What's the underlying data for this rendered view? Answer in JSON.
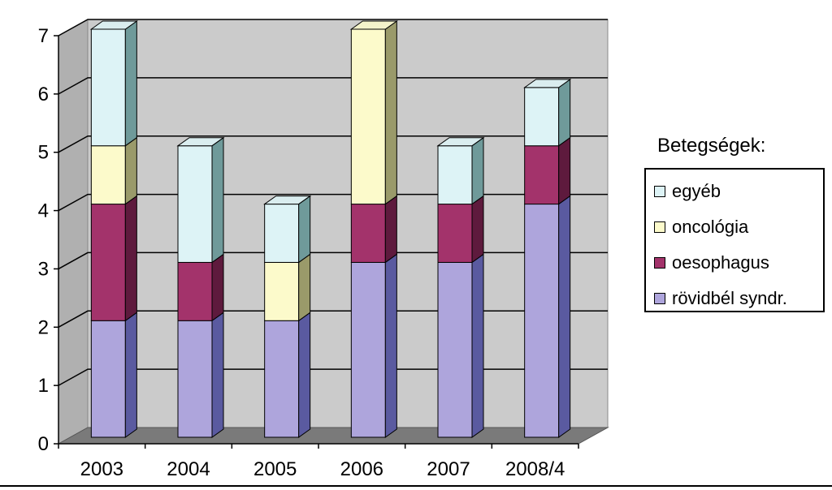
{
  "chart_data": {
    "type": "bar",
    "stacked": true,
    "categories": [
      "2003",
      "2004",
      "2005",
      "2006",
      "2007",
      "2008/4"
    ],
    "series": [
      {
        "name": "rövidbél syndr.",
        "values": [
          2,
          2,
          2,
          3,
          3,
          4
        ],
        "color": "#aea5dc",
        "side": "#5a5aa0"
      },
      {
        "name": "oesophagus",
        "values": [
          2,
          1,
          0,
          1,
          1,
          1
        ],
        "color": "#a3336b",
        "side": "#5e1a3d"
      },
      {
        "name": "oncológia",
        "values": [
          1,
          0,
          1,
          3,
          0,
          0
        ],
        "color": "#fcfacb",
        "side": "#9a9a6a"
      },
      {
        "name": "egyéb",
        "values": [
          2,
          2,
          1,
          0,
          1,
          1
        ],
        "color": "#ddf3f6",
        "side": "#6f9a9a"
      }
    ],
    "ylim": [
      0,
      7
    ],
    "yticks": [
      "0",
      "1",
      "2",
      "3",
      "4",
      "5",
      "6",
      "7"
    ],
    "grid": true,
    "legend_position": "right",
    "legend_title": "Betegségek:",
    "legend_order": [
      3,
      2,
      1,
      0
    ]
  }
}
